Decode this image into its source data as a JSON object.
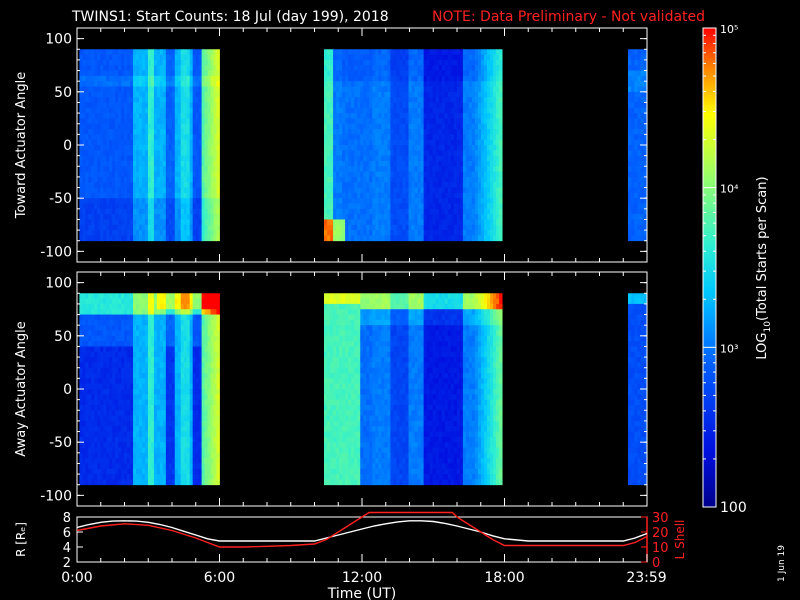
{
  "header": {
    "title": "TWINS1: Start Counts: 18 Jul (day 199), 2018",
    "note": "NOTE: Data Preliminary - Not validated"
  },
  "footer": {
    "date_stamp": "1 Jun 19"
  },
  "colors": {
    "background": "#000000",
    "foreground": "#ffffff",
    "note": "#ff2020",
    "lshell": "#ff2020"
  },
  "chart_data": [
    {
      "type": "heatmap",
      "panel": "top",
      "ylabel": "Toward Actuator Angle",
      "ylim": [
        -110,
        110
      ],
      "yticks": [
        100,
        50,
        0,
        -50,
        -100
      ],
      "xlim": [
        0,
        24
      ],
      "data_blocks": [
        {
          "start": 0.1,
          "end": 6.0,
          "profile": "toward_a"
        },
        {
          "start": 10.4,
          "end": 17.9,
          "profile": "toward_b"
        },
        {
          "start": 23.2,
          "end": 24.0,
          "profile": "toward_c"
        }
      ],
      "angle_range": [
        -90,
        90
      ]
    },
    {
      "type": "heatmap",
      "panel": "bottom",
      "ylabel": "Away Actuator Angle",
      "ylim": [
        -110,
        110
      ],
      "yticks": [
        100,
        50,
        0,
        -50,
        -100
      ],
      "xlim": [
        0,
        24
      ],
      "data_blocks": [
        {
          "start": 0.1,
          "end": 6.0,
          "profile": "away_a"
        },
        {
          "start": 10.4,
          "end": 17.9,
          "profile": "away_b"
        },
        {
          "start": 23.2,
          "end": 24.0,
          "profile": "away_c"
        }
      ],
      "angle_range": [
        -90,
        90
      ]
    },
    {
      "type": "line",
      "panel": "orbit",
      "xlabel": "Time (UT)",
      "xlim": [
        0,
        24
      ],
      "xticks": [
        {
          "value": 0,
          "label": "0:00"
        },
        {
          "value": 6,
          "label": "6:00"
        },
        {
          "value": 12,
          "label": "12:00"
        },
        {
          "value": 18,
          "label": "18:00"
        },
        {
          "value": 23.98,
          "label": "23:59"
        }
      ],
      "y_left": {
        "label": "R [Rₑ]",
        "ylim": [
          2,
          8
        ],
        "ticks": [
          2,
          4,
          6,
          8
        ],
        "tick_labels": [
          "2",
          "4",
          "6",
          "8"
        ]
      },
      "y_right": {
        "label": "L Shell",
        "ylim": [
          0,
          30
        ],
        "ticks": [
          0,
          10,
          20,
          30
        ],
        "tick_labels": [
          "0",
          "10",
          "20",
          "30"
        ]
      },
      "series": [
        {
          "name": "R [Rₑ]",
          "axis": "left",
          "color": "#ffffff",
          "x": [
            0,
            0.5,
            1,
            1.5,
            2,
            2.5,
            3,
            3.5,
            4,
            4.5,
            5,
            5.5,
            6,
            7,
            8,
            9,
            10,
            10.5,
            11,
            11.5,
            12,
            12.5,
            13,
            13.5,
            14,
            14.5,
            15,
            15.5,
            16,
            16.5,
            17,
            17.5,
            18,
            19,
            20,
            21,
            22,
            23,
            23.5,
            24
          ],
          "y": [
            6.6,
            7.0,
            7.3,
            7.45,
            7.5,
            7.45,
            7.3,
            7.0,
            6.6,
            6.1,
            5.6,
            5.1,
            4.8,
            4.8,
            4.8,
            4.8,
            4.8,
            5.2,
            5.6,
            6.0,
            6.4,
            6.8,
            7.1,
            7.35,
            7.5,
            7.5,
            7.4,
            7.15,
            6.8,
            6.4,
            6.0,
            5.5,
            5.1,
            4.8,
            4.8,
            4.8,
            4.8,
            4.8,
            5.2,
            5.8
          ]
        },
        {
          "name": "L Shell",
          "axis": "right",
          "color": "#ff2020",
          "x": [
            0,
            1,
            2,
            3,
            4,
            5,
            6,
            7,
            8,
            9,
            10,
            10.5,
            11,
            11.5,
            12,
            12.3,
            15.8,
            16,
            16.5,
            17,
            17.5,
            18,
            19,
            20,
            21,
            22,
            23,
            23.5,
            24
          ],
          "y": [
            21,
            24,
            25.5,
            24.5,
            21,
            16,
            10,
            10,
            10.5,
            11,
            12,
            15,
            20,
            25,
            30,
            33,
            33,
            30,
            25,
            20,
            15,
            11,
            11,
            11,
            11,
            11,
            11,
            13,
            17
          ]
        }
      ]
    },
    {
      "type": "heatmap",
      "panel": "colorbar",
      "label_parts": {
        "prefix": "LOG",
        "subscript": "10",
        "suffix": "(Total Starts per Scan)"
      },
      "scale": "log",
      "range": [
        100,
        100000
      ],
      "ticks": [
        {
          "value": 100,
          "label": "100"
        },
        {
          "value": 1000,
          "label": "10³"
        },
        {
          "value": 10000,
          "label": "10⁴"
        },
        {
          "value": 100000,
          "label": "10⁵"
        }
      ]
    }
  ]
}
